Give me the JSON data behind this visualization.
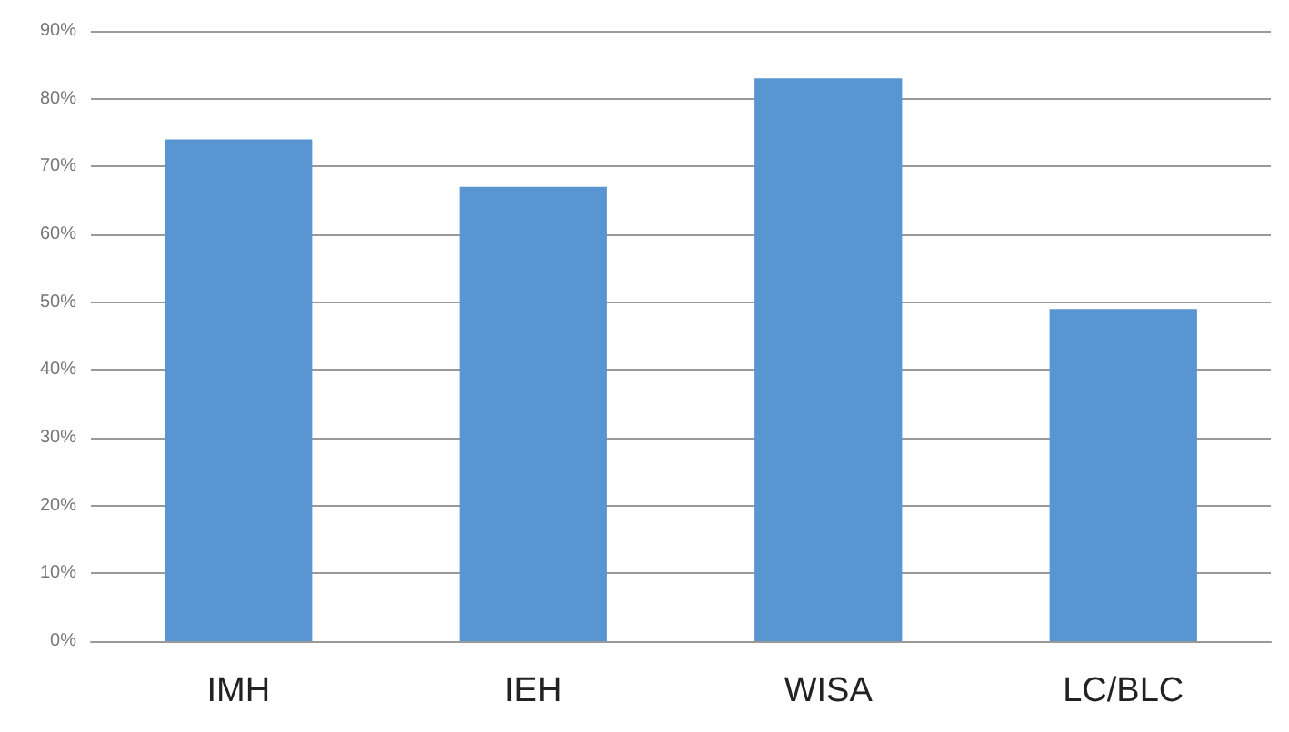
{
  "chart_data": {
    "type": "bar",
    "categories": [
      "IMH",
      "IEH",
      "WISA",
      "LC/BLC"
    ],
    "values": [
      74,
      67,
      83,
      49
    ],
    "color": "#5895d1",
    "ylim": [
      0,
      90
    ],
    "yticks": [
      {
        "value": 0,
        "label": "0%"
      },
      {
        "value": 10,
        "label": "10%"
      },
      {
        "value": 20,
        "label": "20%"
      },
      {
        "value": 30,
        "label": "30%"
      },
      {
        "value": 40,
        "label": "40%"
      },
      {
        "value": 50,
        "label": "50%"
      },
      {
        "value": 60,
        "label": "60%"
      },
      {
        "value": 70,
        "label": "70%"
      },
      {
        "value": 80,
        "label": "80%"
      },
      {
        "value": 90,
        "label": "90%"
      }
    ],
    "grid": "y"
  }
}
